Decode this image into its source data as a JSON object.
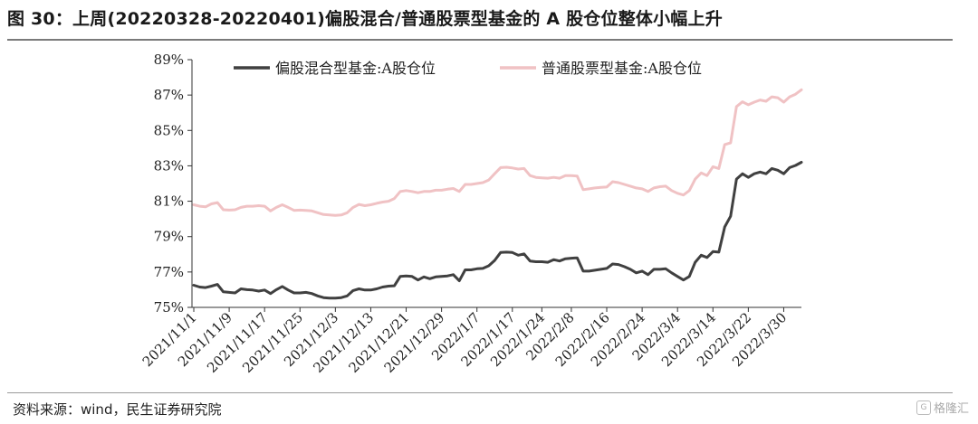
{
  "header": {
    "title": "图 30：上周(20220328-20220401)偏股混合/普通股票型基金的 A 股仓位整体小幅上升"
  },
  "footer": {
    "source": "资料来源：wind，民生证券研究院",
    "watermark": "格隆汇"
  },
  "colors": {
    "series1": "#404040",
    "series2": "#f0c2c4",
    "axis": "#333333",
    "rule": "#7a7a7a"
  },
  "chart_data": {
    "type": "line",
    "title": "",
    "xlabel": "",
    "ylabel": "",
    "ylim": [
      75,
      89
    ],
    "yticks": [
      75,
      77,
      79,
      81,
      83,
      85,
      87,
      89
    ],
    "ytick_labels": [
      "75%",
      "77%",
      "79%",
      "81%",
      "83%",
      "85%",
      "87%",
      "89%"
    ],
    "grid": false,
    "legend_position": "top",
    "x_tick_labels": [
      "2021/11/1",
      "2021/11/9",
      "2021/11/17",
      "2021/11/25",
      "2021/12/3",
      "2021/12/13",
      "2021/12/21",
      "2021/12/29",
      "2022/1/7",
      "2022/1/17",
      "2022/1/24",
      "2022/2/8",
      "2022/2/16",
      "2022/2/24",
      "2022/3/4",
      "2022/3/14",
      "2022/3/22",
      "2022/3/30"
    ],
    "x_tick_indices": [
      0,
      6,
      12,
      18,
      24,
      30,
      36,
      42,
      48,
      54,
      59,
      64,
      70,
      76,
      82,
      88,
      94,
      100
    ],
    "series": [
      {
        "name": "偏股混合型基金:A股仓位",
        "values": [
          76.25,
          76.15,
          76.12,
          76.2,
          76.3,
          75.88,
          75.85,
          75.82,
          76.05,
          76.0,
          75.98,
          75.92,
          75.98,
          75.78,
          76.0,
          76.18,
          75.98,
          75.82,
          75.82,
          75.85,
          75.78,
          75.65,
          75.55,
          75.52,
          75.52,
          75.55,
          75.65,
          75.95,
          76.05,
          75.98,
          75.98,
          76.05,
          76.15,
          76.2,
          76.22,
          76.75,
          76.78,
          76.75,
          76.55,
          76.72,
          76.62,
          76.72,
          76.75,
          76.78,
          76.85,
          76.5,
          77.12,
          77.12,
          77.18,
          77.2,
          77.35,
          77.65,
          78.1,
          78.12,
          78.1,
          77.95,
          78.02,
          77.62,
          77.58,
          77.58,
          77.55,
          77.7,
          77.62,
          77.75,
          77.78,
          77.8,
          77.05,
          77.05,
          77.1,
          77.15,
          77.2,
          77.45,
          77.42,
          77.3,
          77.15,
          76.95,
          77.05,
          76.85,
          77.15,
          77.15,
          77.18,
          76.95,
          76.75,
          76.55,
          76.75,
          77.55,
          77.95,
          77.82,
          78.15,
          78.12,
          79.55,
          80.15,
          82.25,
          82.55,
          82.35,
          82.55,
          82.65,
          82.55,
          82.85,
          82.75,
          82.55,
          82.9,
          83.02,
          83.2
        ]
      },
      {
        "name": "普通股票型基金:A股仓位",
        "values": [
          80.8,
          80.72,
          80.68,
          80.85,
          80.92,
          80.52,
          80.5,
          80.52,
          80.65,
          80.72,
          80.72,
          80.75,
          80.72,
          80.45,
          80.65,
          80.8,
          80.65,
          80.48,
          80.5,
          80.48,
          80.45,
          80.35,
          80.25,
          80.22,
          80.2,
          80.22,
          80.35,
          80.65,
          80.82,
          80.75,
          80.8,
          80.88,
          80.95,
          81.0,
          81.15,
          81.55,
          81.6,
          81.55,
          81.48,
          81.55,
          81.55,
          81.62,
          81.62,
          81.68,
          81.72,
          81.55,
          81.95,
          81.95,
          82.0,
          82.05,
          82.2,
          82.55,
          82.9,
          82.92,
          82.88,
          82.82,
          82.85,
          82.45,
          82.35,
          82.32,
          82.3,
          82.35,
          82.3,
          82.45,
          82.45,
          82.42,
          81.65,
          81.7,
          81.75,
          81.78,
          81.8,
          82.1,
          82.05,
          81.95,
          81.85,
          81.75,
          81.7,
          81.55,
          81.75,
          81.82,
          81.85,
          81.6,
          81.45,
          81.35,
          81.6,
          82.25,
          82.6,
          82.45,
          82.95,
          82.85,
          84.2,
          84.3,
          86.35,
          86.62,
          86.45,
          86.6,
          86.72,
          86.65,
          86.9,
          86.85,
          86.6,
          86.9,
          87.05,
          87.3
        ]
      }
    ]
  }
}
